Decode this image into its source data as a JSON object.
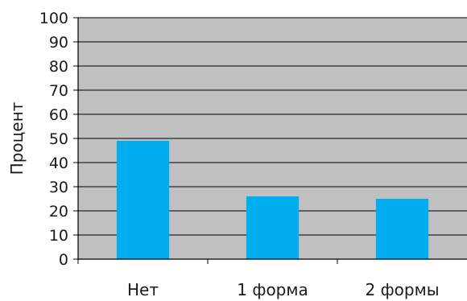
{
  "chart_data": {
    "type": "bar",
    "title": "",
    "xlabel": "",
    "ylabel": "Процент",
    "categories": [
      "Нет",
      "1 форма",
      "2 формы"
    ],
    "series": [
      {
        "values": [
          49,
          26,
          25
        ]
      }
    ],
    "ylim": [
      0,
      100
    ],
    "yticks": [
      "0",
      "10",
      "20",
      "30",
      "40",
      "50",
      "60",
      "70",
      "80",
      "90",
      "100"
    ],
    "grid": true,
    "legend": "none",
    "colors": {
      "bar": "#00AEEF",
      "plot_background": "#C0C0C0",
      "grid": "#000000",
      "axis": "#000000"
    }
  }
}
